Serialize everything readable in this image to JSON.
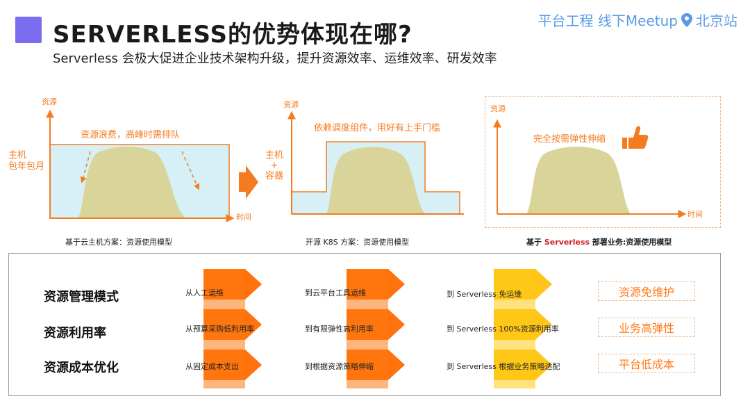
{
  "header": {
    "title": "SERVERLESS的优势体现在哪?",
    "subtitle": "Serverless 会极大促进企业技术架构升级，提升资源效率、运维效率、研发效率",
    "event": "平台工程 线下Meetup",
    "event_location": "北京站"
  },
  "diagrams": [
    {
      "y_label": "资源",
      "x_label": "时间",
      "left_label": "主机\n包年包月",
      "annotation": "资源浪费，高峰时需排队",
      "caption": "基于云主机方案：资源使用模型"
    },
    {
      "y_label": "资源",
      "left_label": "主机\n+\n容器",
      "annotation": "依赖调度组件，用好有上手门槛",
      "caption": "开源 K8S 方案：资源使用模型"
    },
    {
      "y_label": "资源",
      "x_label": "时间",
      "annotation": "完全按需弹性伸缩",
      "caption_prefix": "基于 ",
      "caption_highlight": "Serverless",
      "caption_suffix": " 部署业务:资源使用模型"
    }
  ],
  "comparison": {
    "rows": [
      {
        "label": "资源管理模式",
        "col1": "从人工运维",
        "col2": "到云平台工具运维",
        "col3": "到 Serverless 免运维",
        "result": "资源免维护"
      },
      {
        "label": "资源利用率",
        "col1": "从预算采购低利用率",
        "col2": "到有限弹性高利用率",
        "col3": "到 Serverless 100%资源利用率",
        "result": "业务高弹性"
      },
      {
        "label": "资源成本优化",
        "col1": "从固定成本支出",
        "col2": "到根据资源策略伸缩",
        "col3": "到 Serverless 根据业务策略适配",
        "result": "平台低成本"
      }
    ]
  },
  "colors": {
    "accent_orange": "#f47b20",
    "arrow_orange": "#ff6a00",
    "arrow_yellow": "#ffc20e",
    "area_fill": "#d9d49a",
    "box_fill": "#d6f0f5",
    "title_square": "#7c6cf0",
    "event_blue": "#5a9ae6",
    "highlight_red": "#d0202a"
  }
}
